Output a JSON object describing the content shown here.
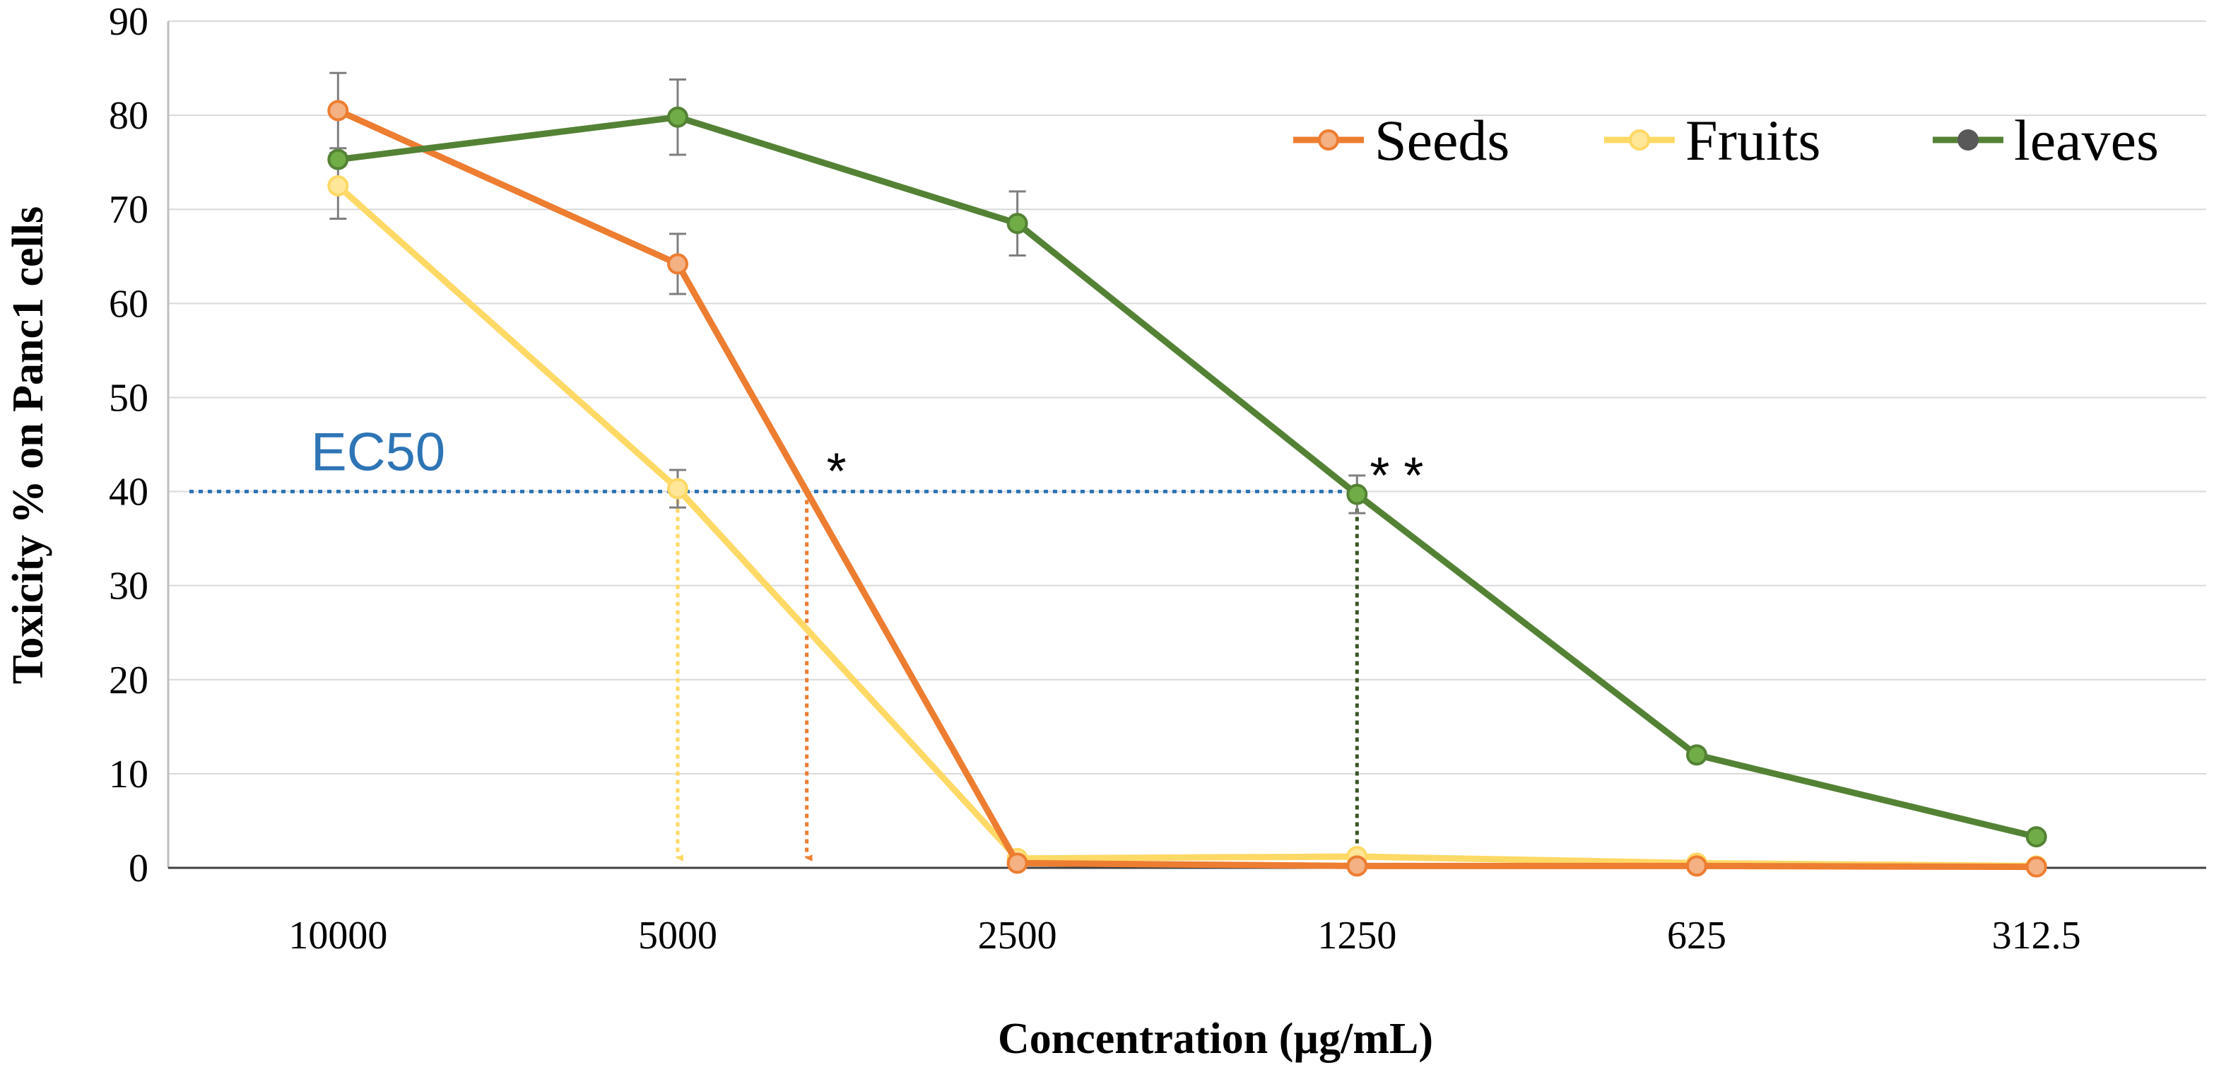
{
  "chart_data": {
    "type": "line",
    "title": "",
    "xlabel": "Concentration (µg/mL)",
    "ylabel": "Toxicity % on Panc1 cells",
    "categories": [
      "10000",
      "5000",
      "2500",
      "1250",
      "625",
      "312.5"
    ],
    "ylim": [
      0,
      90
    ],
    "yticks": [
      "0",
      "10",
      "20",
      "30",
      "40",
      "50",
      "60",
      "70",
      "80",
      "90"
    ],
    "grid": true,
    "legend_position": "top-right",
    "series": [
      {
        "name": "Seeds",
        "color": "#ED7D31",
        "marker_color": "#F4B183",
        "values": [
          80.5,
          64.2,
          0.5,
          0.2,
          0.2,
          0.1
        ],
        "errors": [
          4.0,
          3.2,
          0,
          0,
          0,
          0
        ]
      },
      {
        "name": "Fruits",
        "color": "#FFD966",
        "marker_color": "#FFE699",
        "values": [
          72.5,
          40.3,
          1.0,
          1.2,
          0.5,
          0.2
        ],
        "errors": [
          3.5,
          2.0,
          0,
          0,
          0,
          0
        ]
      },
      {
        "name": "leaves",
        "color": "#548235",
        "marker_color": "#70AD47",
        "values": [
          75.3,
          79.8,
          68.5,
          39.7,
          12.0,
          3.3
        ],
        "errors": [
          0,
          4.0,
          3.4,
          2.0,
          0,
          0
        ]
      }
    ],
    "annotations": {
      "ec50_label": "EC50",
      "ec50_value": 40,
      "ec50_color": "#2E75B6",
      "seeds_marker": "*",
      "leaves_marker": "* *",
      "drop_lines": [
        {
          "series": "Fruits",
          "x_index": 1.0,
          "color": "#FFD966"
        },
        {
          "series": "Seeds",
          "x_index": 1.38,
          "color": "#ED7D31"
        },
        {
          "series": "leaves",
          "x_index": 3.0,
          "color": "#375623"
        }
      ]
    }
  }
}
